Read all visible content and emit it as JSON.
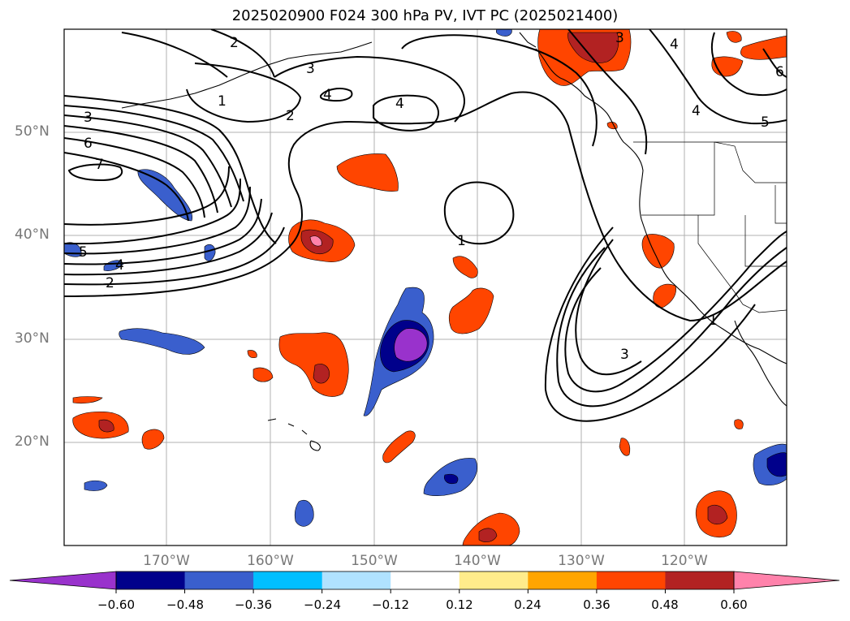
{
  "title": "2025020900 F024 300 hPa PV, IVT PC (2025021400)",
  "lat_labels": [
    "50°N",
    "40°N",
    "30°N",
    "20°N"
  ],
  "lon_labels": [
    "170°W",
    "160°W",
    "150°W",
    "140°W",
    "130°W",
    "120°W"
  ],
  "colorbar": {
    "tick_labels": [
      "−0.60",
      "−0.48",
      "−0.36",
      "−0.24",
      "−0.12",
      "0.12",
      "0.24",
      "0.36",
      "0.48",
      "0.60"
    ],
    "colors": [
      "#9932cc",
      "#00008b",
      "#3a5fcd",
      "#00bfff",
      "#b0e2ff",
      "#ffffff",
      "#ffec8b",
      "#ffa500",
      "#ff4500",
      "#b22222",
      "#ff82ab"
    ]
  },
  "contour_labels": [
    "1",
    "2",
    "3",
    "4",
    "5",
    "6",
    "7"
  ]
}
